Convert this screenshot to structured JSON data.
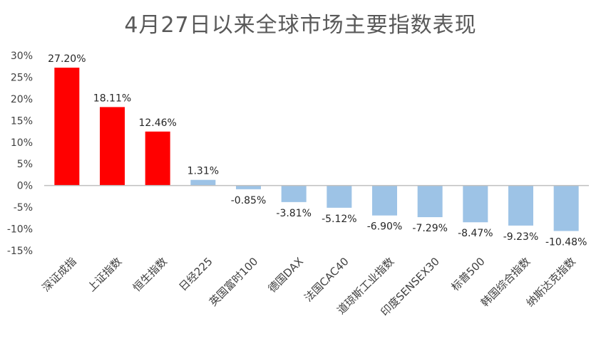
{
  "chart_data": {
    "type": "bar",
    "title": "4月27日以来全球市场主要指数表现",
    "categories": [
      "深证成指",
      "上证指数",
      "恒生指数",
      "日经225",
      "英国富时100",
      "德国DAX",
      "法国CAC40",
      "道琼斯工业指数",
      "印度SENSEX30",
      "标普500",
      "韩国综合指数",
      "纳斯达克指数"
    ],
    "values": [
      27.2,
      18.11,
      12.46,
      1.31,
      -0.85,
      -3.81,
      -5.12,
      -6.9,
      -7.29,
      -8.47,
      -9.23,
      -10.48
    ],
    "data_labels": [
      "27.20%",
      "18.11%",
      "12.46%",
      "1.31%",
      "-0.85%",
      "-3.81%",
      "-5.12%",
      "-6.90%",
      "-7.29%",
      "-8.47%",
      "-9.23%",
      "-10.48%"
    ],
    "ylim": [
      -15,
      30
    ],
    "yticks": [
      30,
      25,
      20,
      15,
      10,
      5,
      0,
      -5,
      -10,
      -15
    ],
    "ytick_labels": [
      "30%",
      "25%",
      "20%",
      "15%",
      "10%",
      "5%",
      "0%",
      "-5%",
      "-10%",
      "-15%"
    ],
    "xlabel": "",
    "ylabel": "",
    "grid": false,
    "colors": {
      "highlight": "#FF0000",
      "normal": "#9DC3E6",
      "axis": "#BFBFBF",
      "title": "#595959"
    },
    "highlight_indices": [
      0,
      1,
      2
    ]
  }
}
